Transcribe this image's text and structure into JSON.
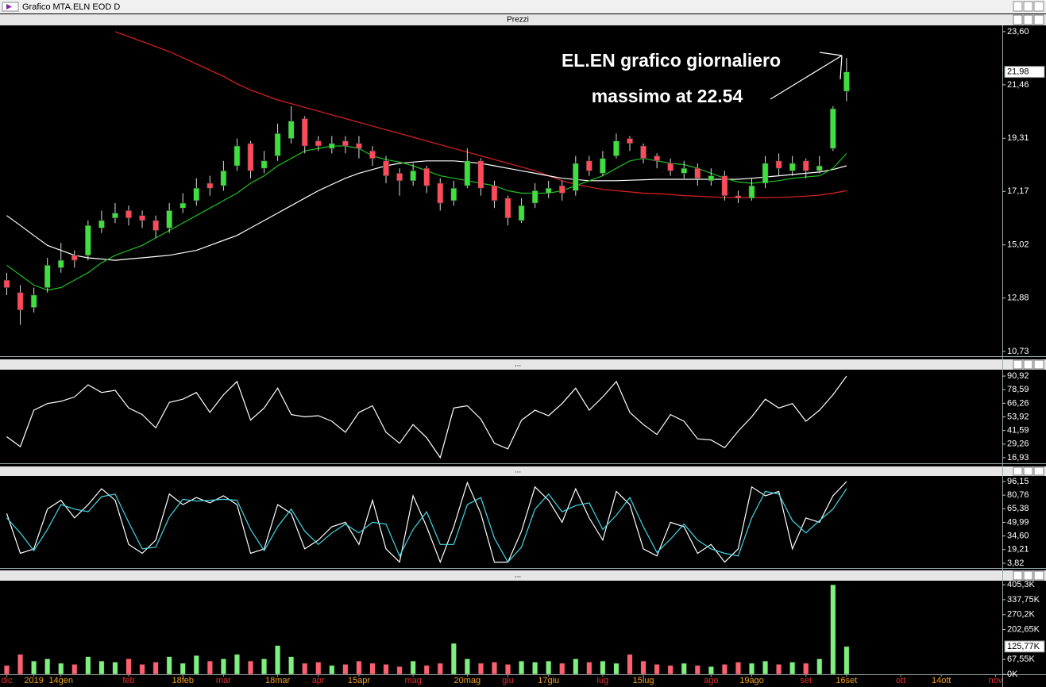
{
  "window": {
    "title": "Grafico MTA.ELN EOD D"
  },
  "panel_title": "Prezzi",
  "chart_data": [
    {
      "type": "candlestick",
      "annotations": [
        "EL.EN grafico giornaliero",
        "massimo at 22.54"
      ],
      "open": [
        13.6,
        13.1,
        12.5,
        13.3,
        14.1,
        14.6,
        14.6,
        15.7,
        16.1,
        16.4,
        16.2,
        16.0,
        15.7,
        16.5,
        16.8,
        17.5,
        17.4,
        18.2,
        19.1,
        18.1,
        18.6,
        19.3,
        20.1,
        19.2,
        18.9,
        19.2,
        19.1,
        18.8,
        18.4,
        17.9,
        17.6,
        18.1,
        17.5,
        16.8,
        17.4,
        18.4,
        17.4,
        16.9,
        16.0,
        16.7,
        17.1,
        17.4,
        17.2,
        18.4,
        17.9,
        18.6,
        19.3,
        19.0,
        18.6,
        18.3,
        17.9,
        18.1,
        17.6,
        17.8,
        17.0,
        16.9,
        17.5,
        18.4,
        18.0,
        18.4,
        18.0,
        18.9,
        21.2,
        null,
        null,
        null,
        null,
        null,
        null,
        null,
        null,
        null,
        null,
        null
      ],
      "high": [
        13.9,
        13.4,
        13.3,
        14.5,
        15.1,
        14.8,
        16.0,
        16.4,
        16.7,
        16.6,
        16.4,
        16.2,
        16.7,
        17.1,
        17.7,
        17.8,
        18.4,
        19.3,
        19.2,
        18.8,
        19.9,
        20.6,
        20.2,
        19.4,
        19.4,
        19.4,
        19.4,
        19.0,
        18.6,
        18.1,
        18.3,
        18.2,
        17.7,
        17.6,
        18.9,
        18.5,
        17.6,
        17.0,
        16.9,
        17.5,
        17.6,
        17.6,
        18.6,
        18.6,
        18.8,
        19.5,
        19.4,
        19.1,
        18.7,
        18.5,
        18.4,
        18.3,
        18.1,
        18.0,
        17.2,
        17.7,
        18.6,
        18.7,
        18.6,
        18.5,
        18.6,
        20.6,
        22.54,
        null,
        null,
        null,
        null,
        null,
        null,
        null,
        null,
        null,
        null,
        null
      ],
      "low": [
        13.0,
        11.8,
        12.3,
        13.1,
        13.9,
        14.1,
        14.4,
        15.5,
        15.9,
        15.8,
        15.7,
        15.3,
        15.5,
        16.3,
        16.6,
        17.0,
        17.2,
        18.0,
        17.7,
        17.9,
        18.4,
        19.1,
        18.7,
        18.8,
        18.7,
        18.7,
        18.5,
        18.2,
        17.5,
        17.0,
        17.4,
        17.1,
        16.4,
        16.6,
        17.3,
        17.0,
        16.5,
        15.8,
        15.9,
        16.5,
        16.9,
        16.8,
        17.0,
        17.8,
        17.8,
        18.5,
        18.8,
        18.3,
        18.1,
        17.8,
        17.7,
        17.4,
        17.4,
        16.8,
        16.7,
        16.8,
        17.3,
        17.8,
        17.8,
        17.7,
        17.9,
        18.8,
        20.8,
        null,
        null,
        null,
        null,
        null,
        null,
        null,
        null,
        null,
        null,
        null
      ],
      "close": [
        13.3,
        12.4,
        13.0,
        14.2,
        14.4,
        14.4,
        15.8,
        16.0,
        16.3,
        16.1,
        16.0,
        15.6,
        16.4,
        16.7,
        17.3,
        17.3,
        18.0,
        19.0,
        18.0,
        18.4,
        19.5,
        20.0,
        19.0,
        19.0,
        19.1,
        19.0,
        18.9,
        18.5,
        17.8,
        17.6,
        18.0,
        17.4,
        16.7,
        17.3,
        18.4,
        17.3,
        16.8,
        16.1,
        16.6,
        17.2,
        17.3,
        17.1,
        18.3,
        18.0,
        18.5,
        19.2,
        19.1,
        18.5,
        18.4,
        18.0,
        18.1,
        17.7,
        17.8,
        17.0,
        16.9,
        17.4,
        18.3,
        18.1,
        18.3,
        18.0,
        18.2,
        20.5,
        21.98,
        null,
        null,
        null,
        null,
        null,
        null,
        null,
        null,
        null,
        null,
        null
      ],
      "up_color": "#3ee03e",
      "down_color": "#ff4a5a",
      "series": [
        {
          "color": "#e02020",
          "values": [
            null,
            null,
            null,
            null,
            null,
            null,
            null,
            null,
            23.6,
            23.4,
            23.2,
            23.0,
            22.8,
            22.55,
            22.3,
            22.05,
            21.8,
            21.5,
            21.25,
            21.05,
            20.85,
            20.7,
            20.55,
            20.4,
            20.25,
            20.1,
            19.95,
            19.8,
            19.65,
            19.5,
            19.35,
            19.2,
            19.05,
            18.9,
            18.75,
            18.6,
            18.45,
            18.3,
            18.15,
            18.0,
            17.8,
            17.6,
            17.45,
            17.35,
            17.25,
            17.2,
            17.15,
            17.1,
            17.08,
            17.05,
            17.0,
            16.98,
            16.95,
            16.93,
            16.92,
            16.92,
            16.92,
            16.93,
            16.95,
            16.98,
            17.02,
            17.1,
            17.2,
            null,
            null,
            null,
            null,
            null,
            null,
            null,
            null,
            null,
            null,
            null
          ]
        },
        {
          "color": "#ffffff",
          "values": [
            16.2,
            15.8,
            15.4,
            15.0,
            14.8,
            14.6,
            14.5,
            14.45,
            14.4,
            14.45,
            14.5,
            14.55,
            14.6,
            14.7,
            14.8,
            15.0,
            15.2,
            15.4,
            15.7,
            16.0,
            16.3,
            16.6,
            16.9,
            17.2,
            17.45,
            17.7,
            17.9,
            18.05,
            18.2,
            18.3,
            18.35,
            18.4,
            18.4,
            18.4,
            18.35,
            18.3,
            18.2,
            18.1,
            18.0,
            17.9,
            17.8,
            17.7,
            17.65,
            17.6,
            17.6,
            17.6,
            17.62,
            17.64,
            17.66,
            17.66,
            17.66,
            17.66,
            17.66,
            17.66,
            17.66,
            17.7,
            17.75,
            17.8,
            17.85,
            17.9,
            17.95,
            18.05,
            18.2,
            null,
            null,
            null,
            null,
            null,
            null,
            null,
            null,
            null,
            null,
            null
          ]
        },
        {
          "color": "#20c020",
          "values": [
            14.2,
            13.8,
            13.4,
            13.2,
            13.3,
            13.6,
            13.9,
            14.3,
            14.6,
            14.8,
            15.0,
            15.3,
            15.6,
            15.9,
            16.2,
            16.5,
            16.8,
            17.1,
            17.5,
            17.8,
            18.2,
            18.5,
            18.8,
            18.9,
            19.0,
            19.0,
            18.9,
            18.6,
            18.45,
            18.35,
            18.2,
            18.0,
            17.8,
            17.7,
            17.6,
            17.5,
            17.4,
            17.2,
            17.1,
            17.1,
            17.1,
            17.2,
            17.4,
            17.6,
            17.8,
            18.1,
            18.4,
            18.5,
            18.4,
            18.3,
            18.25,
            18.1,
            17.9,
            17.7,
            17.55,
            17.5,
            17.55,
            17.6,
            17.7,
            17.75,
            17.8,
            18.1,
            18.7,
            null,
            null,
            null,
            null,
            null,
            null,
            null,
            null,
            null,
            null,
            null
          ]
        }
      ],
      "marker": {
        "value": 21.98,
        "label": "21,98"
      },
      "ylim": [
        10.54,
        23.82
      ],
      "yticks": [
        {
          "value": 23.6,
          "label": "23,60"
        },
        {
          "value": 21.46,
          "label": "21,46"
        },
        {
          "value": 19.31,
          "label": "19,31"
        },
        {
          "value": 17.17,
          "label": "17,17"
        },
        {
          "value": 15.02,
          "label": "15,02"
        },
        {
          "value": 12.88,
          "label": "12,88"
        },
        {
          "value": 10.73,
          "label": "10,73"
        }
      ],
      "grid": false
    },
    {
      "type": "line",
      "series": [
        {
          "color": "#ffffff",
          "values": [
            36,
            27,
            60,
            66,
            68,
            72,
            83,
            76,
            78,
            62,
            56,
            44,
            67,
            70,
            76,
            58,
            74,
            86,
            51,
            62,
            80,
            56,
            54,
            55,
            50,
            40,
            58,
            64,
            40,
            30,
            47,
            35,
            17,
            62,
            64,
            52,
            30,
            25,
            51,
            60,
            55,
            66,
            80,
            60,
            72,
            86,
            58,
            47,
            38,
            56,
            50,
            34,
            33,
            26,
            41,
            54,
            70,
            62,
            66,
            50,
            60,
            74,
            90.92,
            null,
            null,
            null,
            null,
            null,
            null,
            null,
            null,
            null,
            null,
            null
          ]
        }
      ],
      "ylim": [
        12.6,
        96
      ],
      "yticks": [
        {
          "value": 90.92,
          "label": "90,92"
        },
        {
          "value": 78.59,
          "label": "78,59"
        },
        {
          "value": 66.26,
          "label": "66,26"
        },
        {
          "value": 53.92,
          "label": "53,92"
        },
        {
          "value": 41.59,
          "label": "41,59"
        },
        {
          "value": 29.26,
          "label": "29,26"
        },
        {
          "value": 16.93,
          "label": "16,93"
        }
      ],
      "grid": false
    },
    {
      "type": "line",
      "series": [
        {
          "color": "#ffffff",
          "values": [
            60,
            15,
            20,
            65,
            75,
            55,
            70,
            88,
            75,
            25,
            15,
            30,
            82,
            70,
            78,
            72,
            80,
            70,
            15,
            20,
            70,
            60,
            20,
            30,
            45,
            50,
            25,
            75,
            20,
            5,
            80,
            45,
            5,
            45,
            95,
            60,
            5,
            5,
            40,
            90,
            75,
            50,
            88,
            55,
            30,
            85,
            70,
            20,
            12,
            50,
            45,
            15,
            25,
            5,
            20,
            90,
            80,
            85,
            20,
            55,
            50,
            80,
            96.15,
            null,
            null,
            null,
            null,
            null,
            null,
            null,
            null,
            null,
            null,
            null
          ]
        },
        {
          "color": "#40d8e8",
          "values": [
            55,
            38,
            18,
            42,
            70,
            65,
            62,
            79,
            82,
            50,
            20,
            22,
            56,
            76,
            74,
            75,
            76,
            75,
            42,
            18,
            45,
            65,
            40,
            25,
            38,
            48,
            38,
            50,
            48,
            12,
            42,
            62,
            25,
            25,
            70,
            78,
            32,
            5,
            22,
            65,
            82,
            62,
            69,
            72,
            42,
            58,
            78,
            45,
            16,
            31,
            48,
            30,
            20,
            15,
            12,
            55,
            85,
            82,
            52,
            38,
            52,
            65,
            88,
            null,
            null,
            null,
            null,
            null,
            null,
            null,
            null,
            null,
            null,
            null
          ]
        }
      ],
      "ylim": [
        -0.7,
        101.5
      ],
      "yticks": [
        {
          "value": 96.15,
          "label": "96,15"
        },
        {
          "value": 80.76,
          "label": "80,76"
        },
        {
          "value": 65.38,
          "label": "65,38"
        },
        {
          "value": 49.99,
          "label": "49,99"
        },
        {
          "value": 34.6,
          "label": "34,60"
        },
        {
          "value": 19.21,
          "label": "19,21"
        },
        {
          "value": 3.82,
          "label": "3,82"
        }
      ],
      "grid": false
    },
    {
      "type": "bar",
      "categories": [
        "dic",
        null,
        "2019",
        null,
        "14gen",
        null,
        null,
        null,
        null,
        "feb",
        null,
        null,
        null,
        "18feb",
        null,
        null,
        "mar",
        null,
        null,
        null,
        "18mar",
        null,
        null,
        "apr",
        null,
        null,
        "15apr",
        null,
        null,
        null,
        "mag",
        null,
        null,
        null,
        "20mag",
        null,
        null,
        "giu",
        null,
        null,
        "17giu",
        null,
        null,
        null,
        "lug",
        null,
        null,
        "15lug",
        null,
        null,
        null,
        null,
        "ago",
        null,
        null,
        "19ago",
        null,
        null,
        null,
        "set",
        null,
        null,
        "16set",
        null,
        null,
        null,
        "ott",
        null,
        null,
        "14ott",
        null,
        null,
        null,
        "nov"
      ],
      "values": [
        40,
        90,
        60,
        70,
        50,
        45,
        80,
        60,
        55,
        70,
        45,
        55,
        80,
        50,
        85,
        60,
        70,
        90,
        60,
        70,
        130,
        80,
        50,
        55,
        40,
        45,
        60,
        50,
        45,
        35,
        60,
        40,
        50,
        140,
        70,
        50,
        55,
        45,
        60,
        55,
        60,
        50,
        70,
        55,
        60,
        50,
        90,
        60,
        45,
        40,
        50,
        40,
        35,
        45,
        55,
        50,
        60,
        45,
        55,
        50,
        70,
        405.3,
        125.77,
        null,
        null,
        null,
        null,
        null,
        null,
        null,
        null,
        null,
        null,
        null
      ],
      "up_color": "#7ef07e",
      "down_color": "#ff6070",
      "marker": {
        "value": 125.77,
        "label": "125,77K"
      },
      "ylim": [
        0,
        420
      ],
      "yticks": [
        {
          "value": 405.3,
          "label": "405,3K"
        },
        {
          "value": 337.75,
          "label": "337,75K"
        },
        {
          "value": 270.2,
          "label": "270,2K"
        },
        {
          "value": 202.65,
          "label": "202,65K"
        },
        {
          "value": 67.55,
          "label": "67,55K"
        },
        {
          "value": 0,
          "label": "0K"
        }
      ],
      "grid": false
    }
  ]
}
